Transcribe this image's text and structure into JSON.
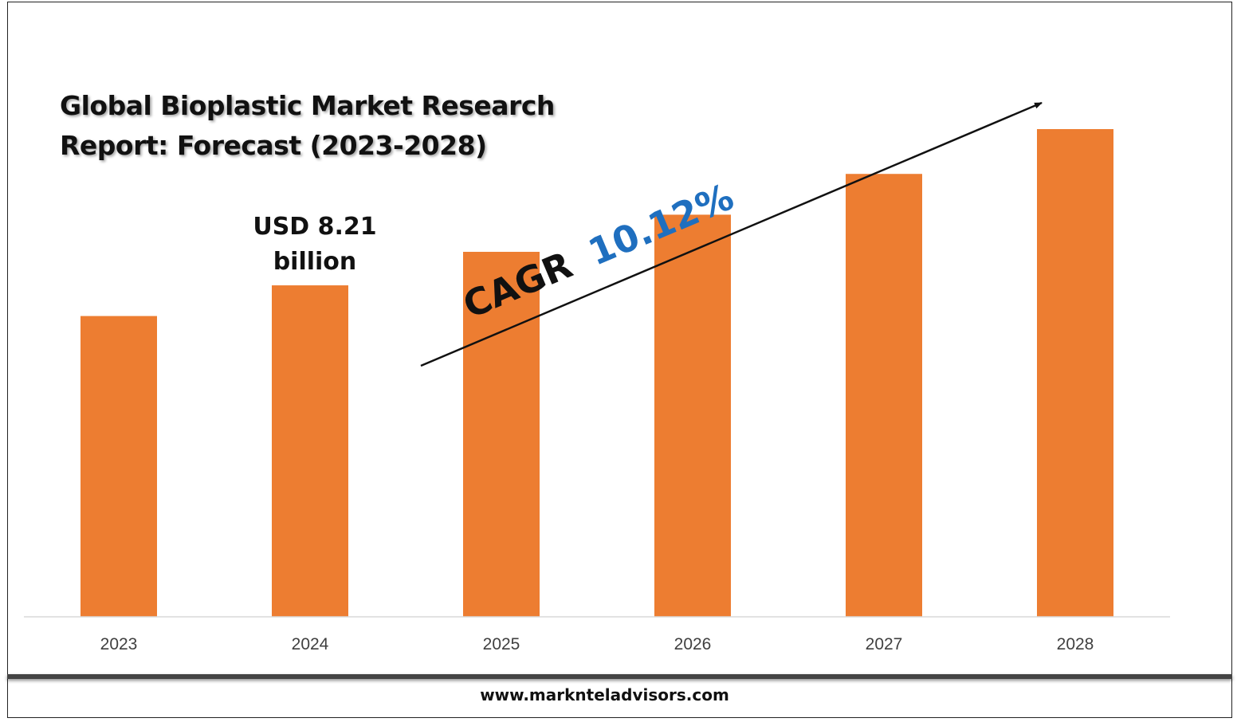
{
  "title_lines": [
    "Global Bioplastic Market Research",
    "Report: Forecast (2023-2028)"
  ],
  "cagr_label": "CAGR",
  "cagr_value": "10.12%",
  "footer": "www.marknteladvisors.com",
  "colors": {
    "bar": "#ED7D31",
    "cagr_value": "#1F6FBF",
    "text": "#111111",
    "axis": "#D9D9D9",
    "tick": "#404040"
  },
  "chart_data": {
    "type": "bar",
    "title": "Global Bioplastic Market Research Report: Forecast (2023-2028)",
    "categories": [
      "2023",
      "2024",
      "2025",
      "2026",
      "2027",
      "2028"
    ],
    "values": [
      7.45,
      8.21,
      9.04,
      9.96,
      10.97,
      12.08
    ],
    "unit": "USD billion",
    "ylim": [
      0,
      12.08
    ],
    "grid": false,
    "legend": "none",
    "annotations": [
      {
        "category": "2024",
        "text_lines": [
          "USD 8.21",
          "billion"
        ]
      },
      {
        "text": "CAGR 10.12%",
        "type": "trend-arrow"
      }
    ]
  }
}
